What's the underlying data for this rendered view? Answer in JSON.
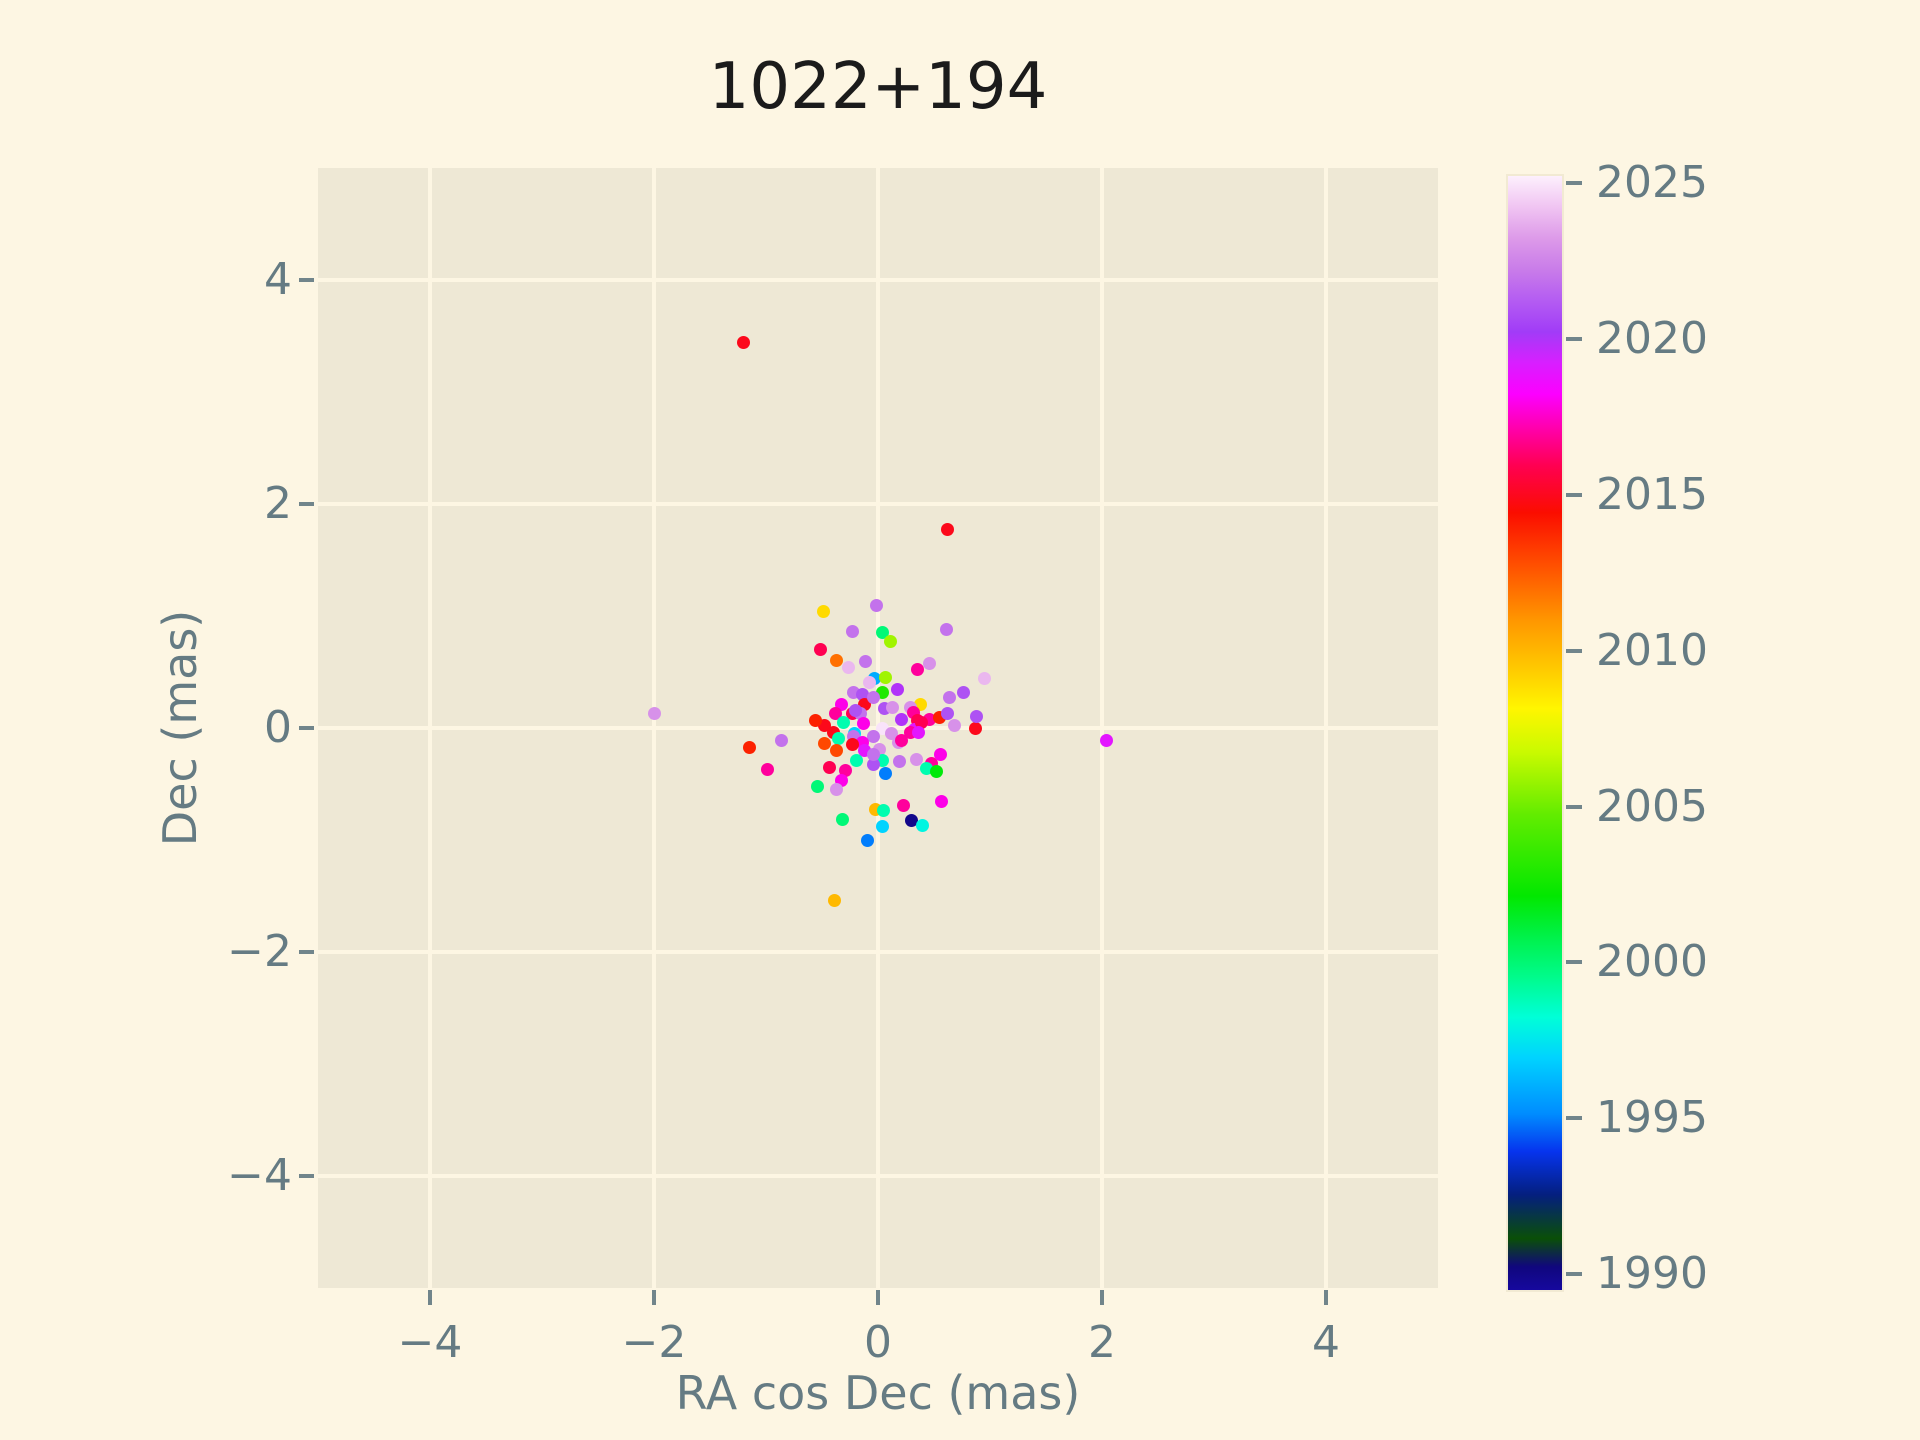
{
  "figure": {
    "background": "#fdf6e3",
    "plot_background": "#eee8d5",
    "grid_color": "#fdf6e3",
    "text_color": "#657b83",
    "title_color": "#1b1b1b"
  },
  "chart_data": {
    "type": "scatter",
    "title": "1022+194",
    "xlabel": "RA cos Dec (mas)",
    "ylabel": "Dec (mas)",
    "xlim": [
      -5,
      5
    ],
    "ylim": [
      -5,
      5
    ],
    "xticks": [
      -4,
      -2,
      0,
      2,
      4
    ],
    "yticks": [
      -4,
      -2,
      0,
      2,
      4
    ],
    "grid": true,
    "marker_diameter_px": 13,
    "colorbar": {
      "min": 1989.55,
      "max": 2025.3,
      "ticks": [
        1990,
        1995,
        2000,
        2005,
        2010,
        2015,
        2020,
        2025
      ],
      "colormap": "gist_ncar-like",
      "stops": [
        [
          1989.55,
          "#16089e"
        ],
        [
          1990.3,
          "#10077d"
        ],
        [
          1991.2,
          "#0a4f07"
        ],
        [
          1992.6,
          "#041f7e"
        ],
        [
          1994.0,
          "#0634ee"
        ],
        [
          1995.2,
          "#008cff"
        ],
        [
          1997.0,
          "#00d3ff"
        ],
        [
          1998.3,
          "#00ffd8"
        ],
        [
          1999.6,
          "#00fb8b"
        ],
        [
          2000.8,
          "#00f24e"
        ],
        [
          2002.2,
          "#02e800"
        ],
        [
          2004.8,
          "#62ec00"
        ],
        [
          2006.8,
          "#c9fa00"
        ],
        [
          2008.2,
          "#fff600"
        ],
        [
          2009.5,
          "#ffc900"
        ],
        [
          2011.0,
          "#ff9800"
        ],
        [
          2012.8,
          "#ff5000"
        ],
        [
          2014.5,
          "#fb0d00"
        ],
        [
          2016.0,
          "#ff0051"
        ],
        [
          2017.2,
          "#ff00ab"
        ],
        [
          2018.3,
          "#fc00ff"
        ],
        [
          2019.3,
          "#d81fff"
        ],
        [
          2020.3,
          "#a13cf7"
        ],
        [
          2021.3,
          "#b45cf2"
        ],
        [
          2022.3,
          "#c97ce9"
        ],
        [
          2023.3,
          "#dd9ae9"
        ],
        [
          2024.3,
          "#f0c4f2"
        ],
        [
          2025.3,
          "#fdf0fd"
        ]
      ]
    },
    "points": [
      [
        -1.2,
        3.44,
        2015
      ],
      [
        0.62,
        1.77,
        2015
      ],
      [
        2.04,
        -0.11,
        2019
      ],
      [
        -2.0,
        0.13,
        2023
      ],
      [
        -0.39,
        -1.54,
        2010
      ],
      [
        -1.15,
        -0.17,
        2014
      ],
      [
        -0.99,
        -0.37,
        2017
      ],
      [
        -0.86,
        -0.11,
        2022
      ],
      [
        -0.49,
        1.04,
        2009
      ],
      [
        -0.01,
        1.09,
        2022
      ],
      [
        -0.23,
        0.86,
        2022
      ],
      [
        0.04,
        0.85,
        2000
      ],
      [
        0.11,
        0.77,
        2006
      ],
      [
        -0.51,
        0.7,
        2016
      ],
      [
        -0.37,
        0.6,
        2012
      ],
      [
        -0.11,
        0.59,
        2022
      ],
      [
        -0.26,
        0.54,
        2024
      ],
      [
        0.46,
        0.58,
        2023
      ],
      [
        0.61,
        0.88,
        2022
      ],
      [
        0.95,
        0.44,
        2024
      ],
      [
        -0.03,
        0.44,
        1996
      ],
      [
        -0.08,
        0.41,
        2024
      ],
      [
        0.07,
        0.45,
        2006
      ],
      [
        0.35,
        0.52,
        2017
      ],
      [
        0.04,
        0.32,
        2003
      ],
      [
        0.17,
        0.34,
        2020
      ],
      [
        -0.22,
        0.32,
        2022
      ],
      [
        -0.14,
        0.3,
        2021
      ],
      [
        -0.33,
        0.21,
        2018
      ],
      [
        -0.38,
        0.13,
        2017
      ],
      [
        -0.23,
        0.13,
        2016
      ],
      [
        -0.12,
        0.21,
        2015
      ],
      [
        -0.04,
        0.27,
        2022
      ],
      [
        0.06,
        0.17,
        2021
      ],
      [
        0.13,
        0.18,
        2023
      ],
      [
        0.21,
        0.08,
        2020
      ],
      [
        0.38,
        0.21,
        2009
      ],
      [
        0.29,
        0.18,
        2023
      ],
      [
        0.32,
        0.14,
        2017
      ],
      [
        0.35,
        0.07,
        2016
      ],
      [
        0.46,
        0.08,
        2017
      ],
      [
        0.55,
        0.09,
        2014
      ],
      [
        0.62,
        0.13,
        2021
      ],
      [
        0.68,
        0.02,
        2023
      ],
      [
        0.87,
        0.0,
        2015
      ],
      [
        0.88,
        0.1,
        2021
      ],
      [
        0.76,
        0.32,
        2021
      ],
      [
        0.64,
        0.27,
        2022
      ],
      [
        -0.16,
        0.13,
        2022
      ],
      [
        -0.2,
        0.16,
        2021
      ],
      [
        0.04,
        0.0,
        2025
      ],
      [
        -0.13,
        0.04,
        2018
      ],
      [
        -0.31,
        0.05,
        1999
      ],
      [
        -0.48,
        0.02,
        2015
      ],
      [
        -0.56,
        0.07,
        2014
      ],
      [
        -0.4,
        -0.04,
        2015
      ],
      [
        0.33,
        -0.01,
        2019
      ],
      [
        0.39,
        0.05,
        2016
      ],
      [
        -0.21,
        -0.05,
        1997
      ],
      [
        -0.04,
        -0.08,
        2022
      ],
      [
        0.12,
        -0.05,
        2023
      ],
      [
        -0.22,
        -0.08,
        2022
      ],
      [
        0.18,
        -0.13,
        2023
      ],
      [
        0.29,
        -0.04,
        2017
      ],
      [
        0.36,
        -0.04,
        2019
      ],
      [
        0.21,
        -0.11,
        2017
      ],
      [
        -0.14,
        -0.13,
        2018
      ],
      [
        -0.35,
        -0.09,
        1999
      ],
      [
        0.01,
        -0.19,
        2023
      ],
      [
        -0.48,
        -0.14,
        2013
      ],
      [
        -0.37,
        -0.2,
        2013
      ],
      [
        -0.23,
        -0.15,
        2015
      ],
      [
        -0.12,
        -0.2,
        2019
      ],
      [
        -0.19,
        -0.29,
        1999
      ],
      [
        -0.29,
        -0.38,
        2017
      ],
      [
        -0.43,
        -0.35,
        2016
      ],
      [
        -0.33,
        -0.47,
        2018
      ],
      [
        0.04,
        -0.29,
        1999
      ],
      [
        0.19,
        -0.3,
        2022
      ],
      [
        0.34,
        -0.28,
        2023
      ],
      [
        0.48,
        -0.32,
        2017
      ],
      [
        0.43,
        -0.36,
        1999
      ],
      [
        0.52,
        -0.39,
        2002
      ],
      [
        0.56,
        -0.24,
        2018
      ],
      [
        0.57,
        -0.66,
        2018
      ],
      [
        0.23,
        -0.69,
        2017
      ],
      [
        0.07,
        -0.41,
        1995
      ],
      [
        -0.04,
        -0.33,
        2021
      ],
      [
        -0.04,
        -0.24,
        2022
      ],
      [
        -0.54,
        -0.52,
        2000
      ],
      [
        -0.37,
        -0.55,
        2023
      ],
      [
        -0.02,
        -0.73,
        2010
      ],
      [
        0.05,
        -0.74,
        1999
      ],
      [
        0.3,
        -0.83,
        1990
      ],
      [
        0.4,
        -0.87,
        1998
      ],
      [
        0.04,
        -0.88,
        1997
      ],
      [
        -0.32,
        -0.82,
        2000
      ],
      [
        -0.09,
        -1.0,
        1995
      ]
    ]
  }
}
